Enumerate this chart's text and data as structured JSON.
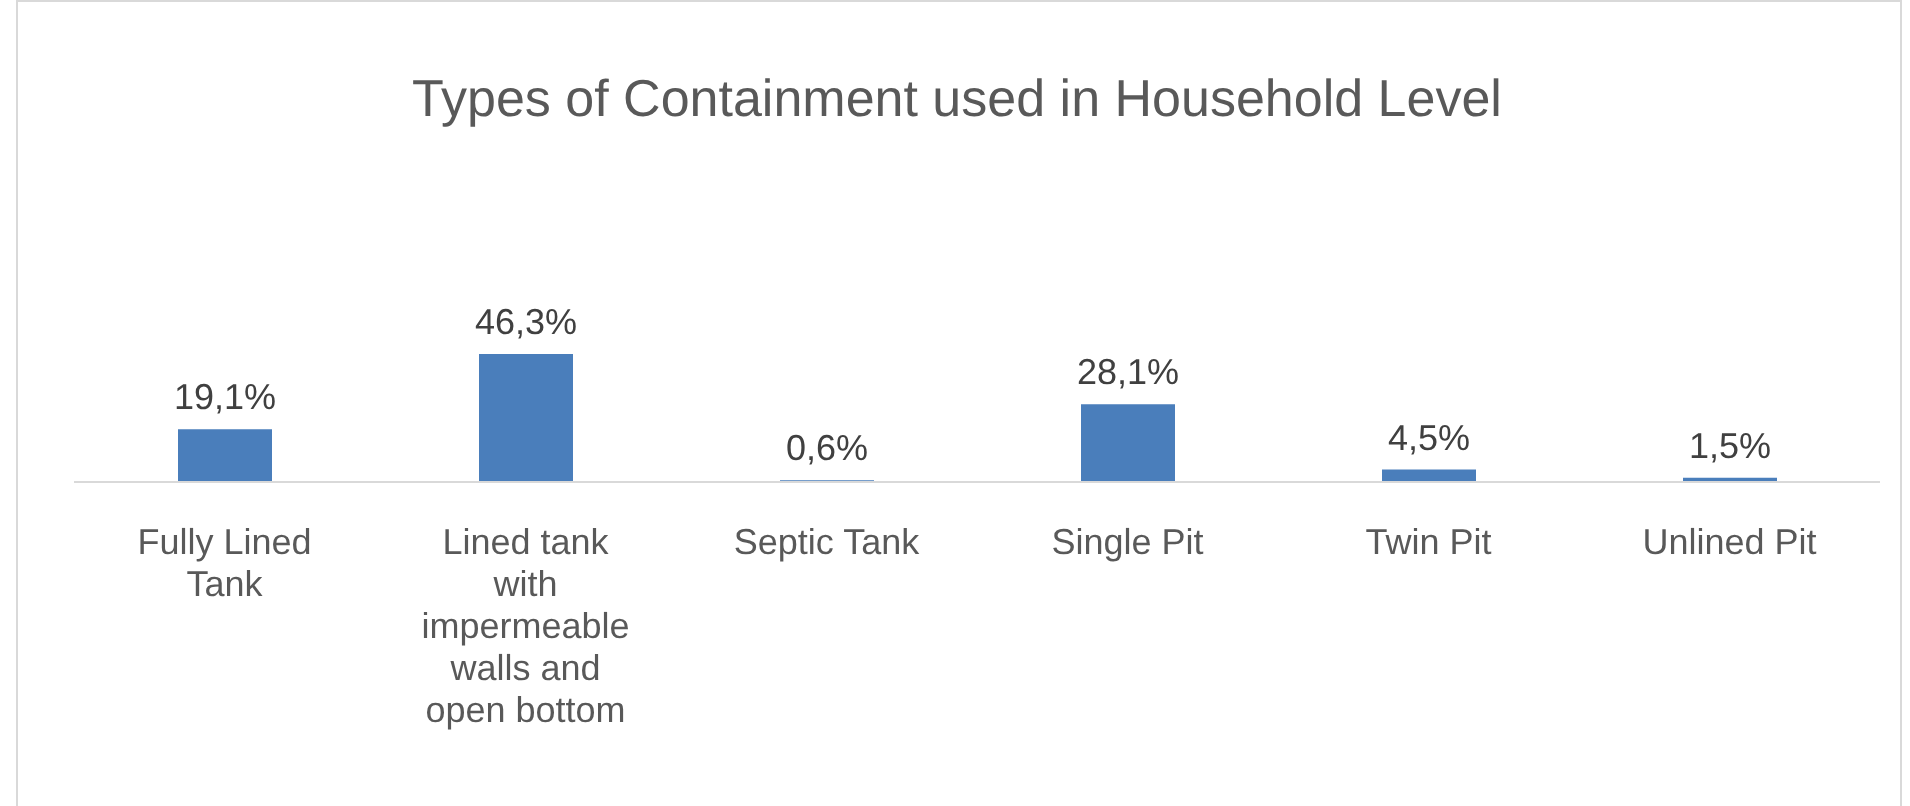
{
  "chart_data": {
    "type": "bar",
    "title": "Types of Containment used in Household Level",
    "categories": [
      "Fully Lined Tank",
      "Lined tank with impermeable walls and open bottom",
      "Septic Tank",
      "Single Pit",
      "Twin Pit",
      "Unlined Pit"
    ],
    "values": [
      19.1,
      46.3,
      0.6,
      28.1,
      4.5,
      1.5
    ],
    "value_labels": [
      "19,1%",
      "46,3%",
      "0,6%",
      "28,1%",
      "4,5%",
      "1,5%"
    ],
    "color": "#4a7ebb"
  }
}
